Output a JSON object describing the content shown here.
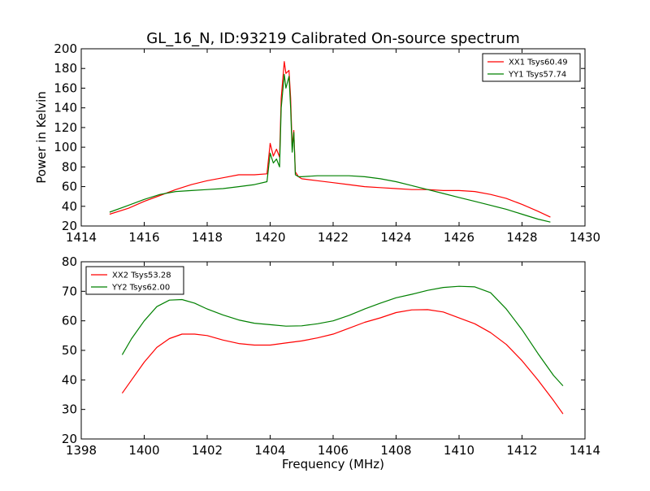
{
  "title": "GL_16_N, ID:93219 Calibrated On-source spectrum",
  "ylabel": "Power in Kelvin",
  "xlabel": "Frequency (MHz)",
  "chart_data": [
    {
      "type": "line",
      "legend_position": "top-right",
      "xlim": [
        1414,
        1430
      ],
      "ylim": [
        20,
        200
      ],
      "xticks": [
        1414,
        1416,
        1418,
        1420,
        1422,
        1424,
        1426,
        1428,
        1430
      ],
      "yticks": [
        20,
        40,
        60,
        80,
        100,
        120,
        140,
        160,
        180,
        200
      ],
      "series": [
        {
          "name": "XX1 Tsys60.49",
          "color": "#ff0000",
          "x": [
            1414.9,
            1415.5,
            1416.0,
            1416.5,
            1417.0,
            1417.5,
            1418.0,
            1418.5,
            1419.0,
            1419.5,
            1419.9,
            1420.0,
            1420.1,
            1420.2,
            1420.3,
            1420.35,
            1420.45,
            1420.5,
            1420.6,
            1420.65,
            1420.7,
            1420.75,
            1420.8,
            1420.9,
            1421.0,
            1421.5,
            1422.0,
            1422.5,
            1423.0,
            1423.5,
            1424.0,
            1424.5,
            1425.0,
            1425.5,
            1426.0,
            1426.5,
            1427.0,
            1427.5,
            1428.0,
            1428.5,
            1428.9
          ],
          "y": [
            32,
            38,
            45,
            51,
            57,
            62,
            66,
            69,
            72,
            72,
            73,
            104,
            91,
            98,
            90,
            150,
            187,
            175,
            178,
            150,
            100,
            117,
            75,
            70,
            68,
            66,
            64,
            62,
            60,
            59,
            58,
            57,
            57,
            56,
            56,
            55,
            52,
            48,
            42,
            35,
            29
          ]
        },
        {
          "name": "YY1 Tsys57.74",
          "color": "#008000",
          "x": [
            1414.9,
            1415.5,
            1416.0,
            1416.5,
            1417.0,
            1417.5,
            1418.0,
            1418.5,
            1419.0,
            1419.5,
            1419.9,
            1420.0,
            1420.1,
            1420.2,
            1420.3,
            1420.35,
            1420.45,
            1420.5,
            1420.6,
            1420.65,
            1420.7,
            1420.75,
            1420.8,
            1420.9,
            1421.0,
            1421.5,
            1422.0,
            1422.5,
            1423.0,
            1423.5,
            1424.0,
            1424.5,
            1425.0,
            1425.5,
            1426.0,
            1426.5,
            1427.0,
            1427.5,
            1428.0,
            1428.5,
            1428.9
          ],
          "y": [
            34,
            41,
            47,
            52,
            55,
            56,
            57,
            58,
            60,
            62,
            65,
            94,
            84,
            88,
            80,
            140,
            174,
            160,
            172,
            140,
            95,
            115,
            72,
            70,
            70,
            71,
            71,
            71,
            70,
            68,
            65,
            61,
            57,
            53,
            49,
            45,
            41,
            37,
            32,
            27,
            24
          ]
        }
      ]
    },
    {
      "type": "line",
      "legend_position": "top-left",
      "xlim": [
        1398,
        1414
      ],
      "ylim": [
        20,
        80
      ],
      "xticks": [
        1398,
        1400,
        1402,
        1404,
        1406,
        1408,
        1410,
        1412,
        1414
      ],
      "yticks": [
        20,
        30,
        40,
        50,
        60,
        70,
        80
      ],
      "series": [
        {
          "name": "XX2 Tsys53.28",
          "color": "#ff0000",
          "x": [
            1399.3,
            1399.6,
            1400.0,
            1400.4,
            1400.8,
            1401.2,
            1401.6,
            1402.0,
            1402.5,
            1403.0,
            1403.5,
            1404.0,
            1404.5,
            1405.0,
            1405.5,
            1406.0,
            1406.5,
            1407.0,
            1407.5,
            1408.0,
            1408.5,
            1409.0,
            1409.5,
            1410.0,
            1410.5,
            1411.0,
            1411.5,
            1412.0,
            1412.5,
            1413.0,
            1413.3
          ],
          "y": [
            35.5,
            40,
            46,
            51,
            54,
            55.5,
            55.5,
            55,
            53.5,
            52.3,
            51.8,
            51.8,
            52.5,
            53.2,
            54.2,
            55.5,
            57.5,
            59.5,
            61,
            62.8,
            63.7,
            63.8,
            63,
            61,
            59,
            56,
            52,
            46.5,
            40,
            33,
            28.5
          ]
        },
        {
          "name": "YY2 Tsys62.00",
          "color": "#008000",
          "x": [
            1399.3,
            1399.6,
            1400.0,
            1400.4,
            1400.8,
            1401.2,
            1401.6,
            1402.0,
            1402.5,
            1403.0,
            1403.5,
            1404.0,
            1404.5,
            1405.0,
            1405.5,
            1406.0,
            1406.5,
            1407.0,
            1407.5,
            1408.0,
            1408.5,
            1409.0,
            1409.5,
            1410.0,
            1410.5,
            1411.0,
            1411.5,
            1412.0,
            1412.5,
            1413.0,
            1413.3
          ],
          "y": [
            48.5,
            54,
            60,
            64.8,
            67,
            67.2,
            66,
            64,
            62,
            60.3,
            59.2,
            58.7,
            58.2,
            58.3,
            59,
            60,
            61.8,
            64,
            66,
            67.8,
            69,
            70.3,
            71.3,
            71.7,
            71.5,
            69.5,
            64,
            57,
            49,
            41.5,
            38
          ]
        }
      ]
    }
  ]
}
